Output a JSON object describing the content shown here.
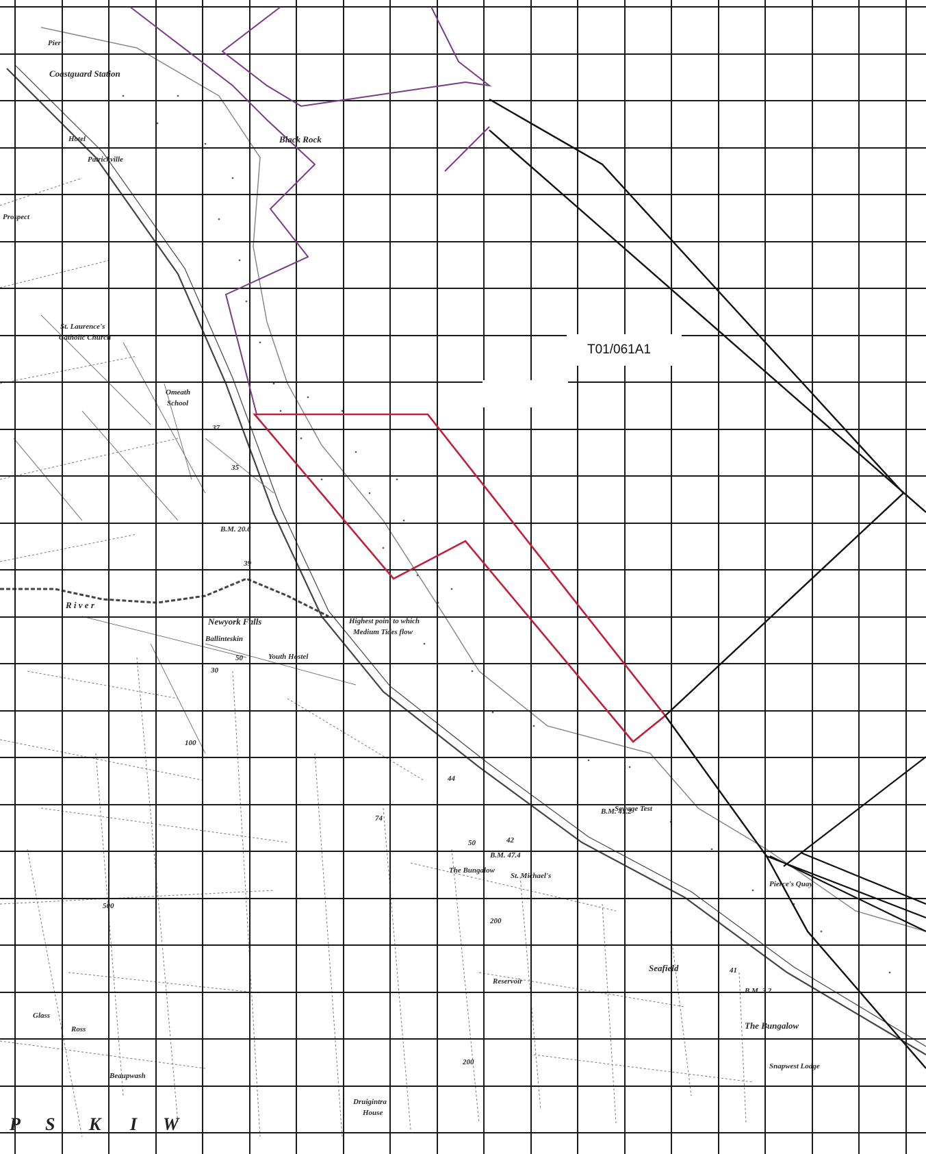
{
  "map": {
    "plot_reference": "T01/061A1",
    "place_names": [
      {
        "id": "pier",
        "text": "Pier"
      },
      {
        "id": "coastguard-station",
        "text": "Coastguard Station"
      },
      {
        "id": "hotel",
        "text": "Hotel"
      },
      {
        "id": "black-rock",
        "text": "Black Rock"
      },
      {
        "id": "patrickville",
        "text": "Patrickville"
      },
      {
        "id": "prospect",
        "text": "Prospect"
      },
      {
        "id": "st-laurences-church",
        "text": "St. Laurence's"
      },
      {
        "id": "catholic-church",
        "text": "Catholic Church"
      },
      {
        "id": "omeath-school",
        "text": "Omeath"
      },
      {
        "id": "school",
        "text": "School"
      },
      {
        "id": "newyork-falls",
        "text": "Newyork Falls"
      },
      {
        "id": "ballinteskin",
        "text": "Ballinteskin"
      },
      {
        "id": "youth-hostel",
        "text": "Youth Hostel"
      },
      {
        "id": "tide-note-1",
        "text": "Highest point to which"
      },
      {
        "id": "tide-note-2",
        "text": "Medium Tides flow"
      },
      {
        "id": "sewage-test",
        "text": "Sewage Test"
      },
      {
        "id": "the-bungalow",
        "text": "The Bungalow"
      },
      {
        "id": "st-michaels-school",
        "text": "St. Michael's"
      },
      {
        "id": "seafield",
        "text": "Seafield"
      },
      {
        "id": "reservoir",
        "text": "Reservoir"
      },
      {
        "id": "the-bungalow-2",
        "text": "The Bungalow"
      },
      {
        "id": "snapwest",
        "text": "Snapwest Lodge"
      },
      {
        "id": "druigintra-house",
        "text": "Druigintra"
      },
      {
        "id": "house",
        "text": "House"
      },
      {
        "id": "glass",
        "text": "Glass"
      },
      {
        "id": "ross",
        "text": "Ross"
      },
      {
        "id": "beaupwash",
        "text": "Beaupwash"
      },
      {
        "id": "pierce-quay",
        "text": "Pierce's Quay"
      },
      {
        "id": "river",
        "text": "R i v e r"
      }
    ],
    "spot_heights": [
      "37",
      "35",
      "39",
      "30",
      "50",
      "44",
      "74",
      "50",
      "42",
      "200",
      "100",
      "500",
      "200",
      "41",
      "B.M. 20.6",
      "B.M. 47.4",
      "B.M. 41.2",
      "B.M. 3.2"
    ],
    "margin_letters": [
      "P",
      "S",
      "K",
      "I",
      "W"
    ],
    "boundary_colors": {
      "purple": "#7b3a86",
      "red": "#c0203a",
      "black": "#111111",
      "grid": "#1a1a1a"
    }
  }
}
